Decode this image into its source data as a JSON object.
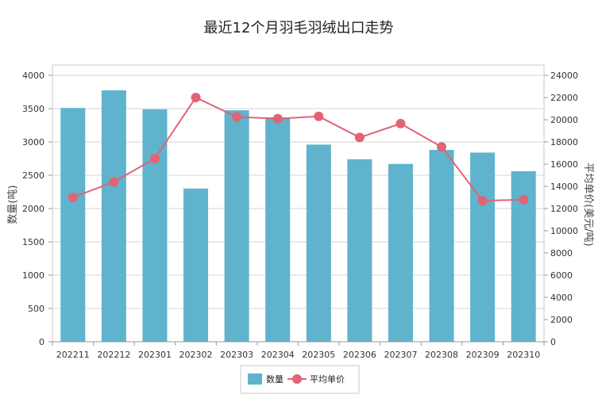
{
  "chart_data": {
    "type": "bar",
    "title": "最近12个月羽毛羽绒出口走势",
    "categories": [
      "202211",
      "202212",
      "202301",
      "202302",
      "202303",
      "202304",
      "202305",
      "202306",
      "202307",
      "202308",
      "202309",
      "202310"
    ],
    "series": [
      {
        "name": "数量",
        "type": "bar",
        "axis": "left",
        "color": "#5fb3cc",
        "values": [
          3510,
          3775,
          3490,
          2300,
          3475,
          3370,
          2960,
          2740,
          2670,
          2880,
          2840,
          2560
        ]
      },
      {
        "name": "平均单价",
        "type": "line",
        "axis": "right",
        "color": "#e06475",
        "values": [
          13000,
          14400,
          16500,
          22000,
          20250,
          20100,
          20300,
          18400,
          19650,
          17550,
          12700,
          12800
        ]
      }
    ],
    "ylabel": "数量(吨)",
    "y2label": "平均单价(美元/吨)",
    "ylim": [
      0,
      4000
    ],
    "yticks": [
      "0",
      "500",
      "1000",
      "1500",
      "2000",
      "2500",
      "3000",
      "3500",
      "4000"
    ],
    "y2lim": [
      0,
      24000
    ],
    "y2ticks": [
      "0",
      "2000",
      "4000",
      "6000",
      "8000",
      "10000",
      "12000",
      "14000",
      "16000",
      "18000",
      "20000",
      "22000",
      "24000"
    ],
    "grid": true,
    "legend_position": "bottom-center"
  }
}
